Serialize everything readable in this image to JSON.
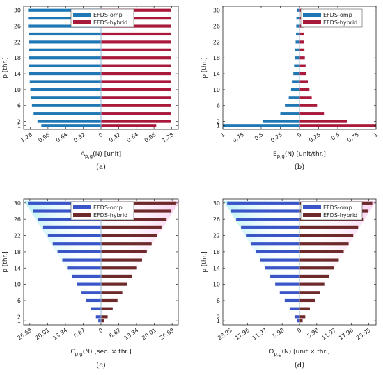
{
  "chart_data": [
    {
      "type": "bar",
      "caption": "(a)",
      "ylabel": "p [thr.]",
      "xlabel_main": "A",
      "xlabel_sub": "p,g",
      "xlabel_rest": "(N)  [unit]",
      "y_ticks": [
        1,
        2,
        6,
        10,
        14,
        18,
        22,
        26,
        30
      ],
      "x_tick_labels": [
        "1.28",
        "0.96",
        "0.64",
        "0.32",
        "0",
        "0.32",
        "0.64",
        "0.96",
        "1.28"
      ],
      "xlim": [
        -1.4,
        1.4
      ],
      "gradient": false,
      "legend": [
        "EFDS-omp",
        "EFDS-hybrid"
      ],
      "colors": {
        "omp": "#1f77b4",
        "hybrid": "#a8193c"
      },
      "series": [
        {
          "name": "EFDS-omp",
          "p": [
            1,
            2,
            4,
            6,
            8,
            10,
            12,
            14,
            16,
            18,
            20,
            22,
            24,
            26,
            28,
            30
          ],
          "values": [
            1.08,
            1.15,
            1.22,
            1.25,
            1.27,
            1.28,
            1.29,
            1.3,
            1.3,
            1.31,
            1.31,
            1.31,
            1.31,
            1.32,
            1.32,
            1.32
          ]
        },
        {
          "name": "EFDS-hybrid",
          "p": [
            1,
            2,
            4,
            6,
            8,
            10,
            12,
            14,
            16,
            18,
            20,
            22,
            24,
            26,
            28,
            30
          ],
          "values": [
            1.0,
            1.27,
            1.27,
            1.27,
            1.27,
            1.27,
            1.27,
            1.27,
            1.27,
            1.27,
            1.27,
            1.27,
            1.27,
            1.27,
            1.27,
            1.27
          ]
        }
      ]
    },
    {
      "type": "bar",
      "caption": "(b)",
      "ylabel": "p [thr.]",
      "xlabel_main": "E",
      "xlabel_sub": "p,g",
      "xlabel_rest": "(N)  [unit/thr.]",
      "y_ticks": [
        1,
        2,
        6,
        10,
        14,
        18,
        22,
        26,
        30
      ],
      "x_tick_labels": [
        "1",
        "0.75",
        "0.5",
        "0.25",
        "0",
        "0.25",
        "0.5",
        "0.75",
        "1"
      ],
      "xlim": [
        -1,
        1
      ],
      "gradient": false,
      "legend": [
        "EFDS-omp",
        "EFDS-hybrid"
      ],
      "colors": {
        "omp": "#1f77b4",
        "hybrid": "#a8193c"
      },
      "series": [
        {
          "name": "EFDS-omp",
          "p": [
            1,
            2,
            4,
            6,
            8,
            10,
            12,
            14,
            16,
            18,
            20,
            22,
            24,
            26,
            28,
            30
          ],
          "values": [
            1.0,
            0.48,
            0.25,
            0.19,
            0.14,
            0.11,
            0.09,
            0.08,
            0.07,
            0.06,
            0.055,
            0.05,
            0.045,
            0.042,
            0.04,
            0.037
          ]
        },
        {
          "name": "EFDS-hybrid",
          "p": [
            1,
            2,
            4,
            6,
            8,
            10,
            12,
            14,
            16,
            18,
            20,
            22,
            24,
            26,
            28,
            30
          ],
          "values": [
            1.0,
            0.62,
            0.32,
            0.23,
            0.16,
            0.13,
            0.11,
            0.09,
            0.08,
            0.07,
            0.065,
            0.06,
            0.055,
            0.05,
            0.045,
            0.042
          ]
        }
      ]
    },
    {
      "type": "bar",
      "caption": "(c)",
      "ylabel": "p [thr.]",
      "xlabel_main": "C",
      "xlabel_sub": "p,g",
      "xlabel_rest": "(N)  [sec. × thr.]",
      "y_ticks": [
        1,
        2,
        6,
        10,
        14,
        18,
        22,
        26,
        30
      ],
      "x_tick_labels": [
        "26.69",
        "20.01",
        "13.34",
        "6.67",
        "0",
        "6.67",
        "13.34",
        "20.01",
        "26.69"
      ],
      "xlim": [
        -29,
        29
      ],
      "gradient": true,
      "legend": [
        "EFDS-omp",
        "EFDS-hybrid"
      ],
      "colors": {
        "omp": "#3a55c8",
        "hybrid": "#6e2a2a"
      },
      "series": [
        {
          "name": "EFDS-omp",
          "p": [
            1,
            2,
            4,
            6,
            8,
            10,
            12,
            14,
            16,
            18,
            20,
            22,
            24,
            26,
            28,
            30
          ],
          "values": [
            1.0,
            1.9,
            3.7,
            5.5,
            7.3,
            9.1,
            10.9,
            12.7,
            14.5,
            16.3,
            18.1,
            19.9,
            21.7,
            23.5,
            25.4,
            27.4
          ]
        },
        {
          "name": "EFDS-hybrid",
          "p": [
            1,
            2,
            4,
            6,
            8,
            10,
            12,
            14,
            16,
            18,
            20,
            22,
            24,
            26,
            28,
            30
          ],
          "values": [
            1.3,
            2.5,
            4.4,
            6.2,
            8.0,
            9.8,
            11.7,
            13.5,
            15.4,
            17.2,
            19.0,
            20.9,
            22.7,
            24.6,
            26.4,
            28.2
          ]
        }
      ]
    },
    {
      "type": "bar",
      "caption": "(d)",
      "ylabel": "p [thr.]",
      "xlabel_main": "O",
      "xlabel_sub": "p,g",
      "xlabel_rest": "(N)  [unit  × thr.]",
      "y_ticks": [
        1,
        2,
        6,
        10,
        14,
        18,
        22,
        26,
        30
      ],
      "x_tick_labels": [
        "23.95",
        "17.96",
        "11.97",
        "5.98",
        "0",
        "5.98",
        "11.97",
        "17.96",
        "23.95"
      ],
      "xlim": [
        -26.5,
        26.5
      ],
      "gradient": true,
      "legend": [
        "EFDS-omp",
        "EFDS-hybrid"
      ],
      "colors": {
        "omp": "#3a55c8",
        "hybrid": "#6e2a2a"
      },
      "series": [
        {
          "name": "EFDS-omp",
          "p": [
            1,
            2,
            4,
            6,
            8,
            10,
            12,
            14,
            16,
            18,
            20,
            22,
            24,
            26,
            28,
            30
          ],
          "values": [
            0.9,
            1.7,
            3.4,
            5.1,
            6.8,
            8.4,
            10.1,
            11.8,
            13.5,
            15.1,
            16.8,
            18.5,
            20.2,
            21.9,
            23.6,
            25.0
          ]
        },
        {
          "name": "EFDS-hybrid",
          "p": [
            1,
            2,
            4,
            6,
            8,
            10,
            12,
            14,
            16,
            18,
            20,
            22,
            24,
            26,
            28,
            30
          ],
          "values": [
            1.1,
            2.0,
            3.6,
            5.3,
            7.0,
            8.6,
            10.3,
            12.0,
            13.6,
            15.3,
            17.0,
            18.6,
            20.3,
            22.0,
            23.6,
            25.2
          ]
        }
      ]
    }
  ]
}
